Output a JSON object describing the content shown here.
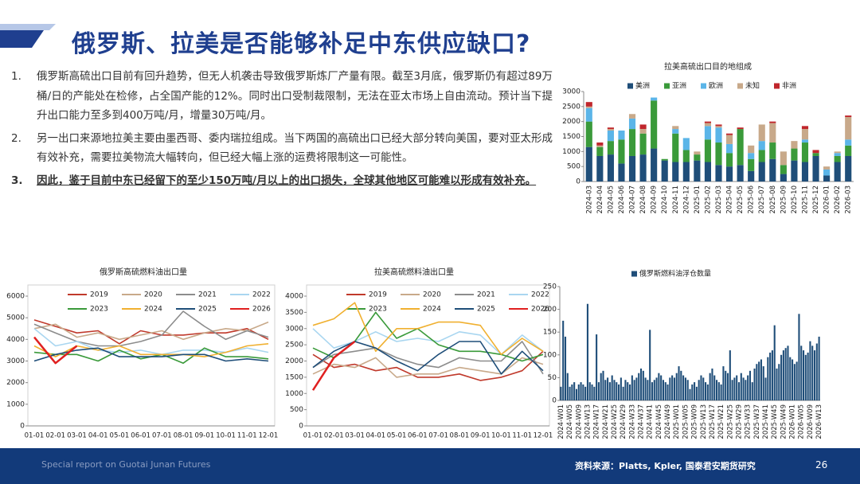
{
  "header": {
    "title": "俄罗斯、拉美是否能够补足中东供应缺口?"
  },
  "text": {
    "items": [
      {
        "number": "1.",
        "text": "俄罗斯高硫出口目前有回升趋势，但无人机袭击导致俄罗斯炼厂产量有限。截至3月底，俄罗斯仍有超过89万桶/日的产能处在检修，占全国产能的12%。同时出口受制裁限制，无法在亚太市场上自由流动。预计当下提升出口能力至多到400万吨/月，增量30万吨/月。"
      },
      {
        "number": "2.",
        "text": "另一出口来源地拉美主要由墨西哥、委内瑞拉组成。当下两国的高硫出口已经大部分转向美国，要对亚太形成有效补充，需要拉美物流大幅转向，但已经大幅上涨的运费将限制这一可能性。"
      },
      {
        "number": "3.",
        "text": "因此，鉴于目前中东已经留下的至少150万吨/月以上的出口损失，全球其他地区可能难以形成有效补充。"
      }
    ]
  },
  "footer": {
    "left": "Special report on Guotai Junan Futures",
    "source": "资料来源：Platts, Kpler, 国泰君安期货研究",
    "page": "26"
  },
  "chart_data": [
    {
      "type": "stacked_bar",
      "title": "拉美高硫出口目的地组成",
      "legend": "top",
      "grid": false,
      "categories": [
        "2024-03",
        "2024-04",
        "2024-05",
        "2024-06",
        "2024-07",
        "2024-08",
        "2024-09",
        "2024-10",
        "2024-11",
        "2024-12",
        "2025-01",
        "2025-02",
        "2025-03",
        "2025-04",
        "2025-05",
        "2025-06",
        "2025-07",
        "2025-08",
        "2025-09",
        "2025-10",
        "2025-11",
        "2025-12",
        "2026-01",
        "2026-02",
        "2026-03"
      ],
      "ylim": [
        0,
        3000
      ],
      "yticks": [
        0,
        500,
        1000,
        1500,
        2000,
        2500,
        3000
      ],
      "series": [
        {
          "name": "美洲",
          "color": "#1f4e79",
          "values": [
            1150,
            850,
            900,
            600,
            850,
            900,
            1100,
            700,
            650,
            650,
            700,
            650,
            550,
            500,
            550,
            350,
            650,
            750,
            250,
            700,
            650,
            850,
            200,
            650,
            850
          ]
        },
        {
          "name": "亚洲",
          "color": "#3a9a3a",
          "values": [
            850,
            300,
            450,
            800,
            900,
            700,
            1600,
            50,
            950,
            400,
            200,
            750,
            750,
            450,
            1200,
            400,
            400,
            550,
            300,
            400,
            650,
            100,
            0,
            200,
            350
          ]
        },
        {
          "name": "欧洲",
          "color": "#5bb5e8",
          "values": [
            450,
            0,
            350,
            300,
            350,
            0,
            100,
            0,
            150,
            400,
            0,
            450,
            500,
            300,
            0,
            200,
            300,
            0,
            0,
            0,
            100,
            0,
            200,
            100,
            200
          ]
        },
        {
          "name": "未知",
          "color": "#c8a98a",
          "values": [
            50,
            50,
            50,
            0,
            150,
            150,
            0,
            0,
            100,
            0,
            100,
            100,
            50,
            300,
            0,
            250,
            550,
            650,
            450,
            250,
            350,
            0,
            100,
            50,
            750
          ]
        },
        {
          "name": "非洲",
          "color": "#c0262c",
          "values": [
            150,
            100,
            50,
            0,
            0,
            150,
            0,
            0,
            0,
            0,
            0,
            50,
            50,
            50,
            50,
            0,
            0,
            50,
            0,
            0,
            100,
            100,
            0,
            0,
            50
          ]
        }
      ]
    },
    {
      "type": "line",
      "title": "俄罗斯高硫燃料油出口量",
      "legend": "top",
      "grid": false,
      "categories": [
        "01-01",
        "02-01",
        "03-01",
        "04-01",
        "05-01",
        "06-01",
        "07-01",
        "08-01",
        "09-01",
        "10-01",
        "11-01",
        "12-01"
      ],
      "ylim": [
        0,
        6000
      ],
      "yticks": [
        0,
        1000,
        2000,
        3000,
        4000,
        5000,
        6000
      ],
      "series": [
        {
          "name": "2019",
          "color": "#c0392b",
          "values": [
            4900,
            4600,
            4300,
            4400,
            3800,
            4400,
            4200,
            4200,
            4300,
            4300,
            4500,
            4000
          ]
        },
        {
          "name": "2020",
          "color": "#c8a98a",
          "values": [
            4500,
            4700,
            4100,
            4300,
            4000,
            4200,
            4400,
            4000,
            4300,
            4500,
            4400,
            4800
          ]
        },
        {
          "name": "2021",
          "color": "#8c8c8c",
          "values": [
            4700,
            4300,
            3900,
            3700,
            3700,
            3900,
            4200,
            5300,
            4600,
            4000,
            4400,
            4100
          ]
        },
        {
          "name": "2022",
          "color": "#a9d6f0",
          "values": [
            4500,
            3700,
            3900,
            3500,
            3400,
            3500,
            3300,
            3500,
            3500,
            3400,
            3600,
            3400
          ]
        },
        {
          "name": "2023",
          "color": "#3a9a3a",
          "values": [
            3400,
            3300,
            3300,
            3000,
            3500,
            3100,
            3300,
            2900,
            3600,
            3200,
            3200,
            3100
          ]
        },
        {
          "name": "2024",
          "color": "#f0b030",
          "values": [
            3700,
            3200,
            3700,
            3500,
            3700,
            3300,
            3300,
            3300,
            3200,
            3400,
            3700,
            3800
          ]
        },
        {
          "name": "2025",
          "color": "#1f4e79",
          "values": [
            3000,
            3300,
            3500,
            3600,
            3200,
            3200,
            3200,
            3300,
            3300,
            3000,
            3100,
            3000
          ]
        },
        {
          "name": "2026",
          "color": "#e02020",
          "values": [
            4100,
            2900,
            3700,
            null,
            null,
            null,
            null,
            null,
            null,
            null,
            null,
            null
          ]
        }
      ]
    },
    {
      "type": "line",
      "title": "拉美高硫燃料油出口量",
      "legend": "top",
      "grid": false,
      "categories": [
        "01-01",
        "02-01",
        "03-01",
        "04-01",
        "05-01",
        "06-01",
        "07-01",
        "08-01",
        "09-01",
        "10-01",
        "11-01",
        "12-01"
      ],
      "ylim": [
        0,
        4000
      ],
      "yticks": [
        0,
        500,
        1000,
        1500,
        2000,
        2500,
        3000,
        3500,
        4000
      ],
      "series": [
        {
          "name": "2019",
          "color": "#c0392b",
          "values": [
            2200,
            1800,
            1900,
            1700,
            1800,
            1500,
            1500,
            1600,
            1400,
            1500,
            1700,
            2300
          ]
        },
        {
          "name": "2020",
          "color": "#c8a98a",
          "values": [
            1600,
            1900,
            1800,
            2100,
            1500,
            1600,
            1600,
            1800,
            1700,
            1600,
            2100,
            1900
          ]
        },
        {
          "name": "2021",
          "color": "#8c8c8c",
          "values": [
            1800,
            2200,
            2300,
            2400,
            2100,
            1900,
            1800,
            2100,
            2000,
            2000,
            2600,
            1600
          ]
        },
        {
          "name": "2022",
          "color": "#a9d6f0",
          "values": [
            3000,
            2400,
            2600,
            2900,
            2600,
            2700,
            2600,
            2900,
            2800,
            2200,
            2800,
            2300
          ]
        },
        {
          "name": "2023",
          "color": "#3a9a3a",
          "values": [
            2400,
            2100,
            2600,
            3500,
            2700,
            3000,
            2500,
            2300,
            2300,
            2200,
            2000,
            2200
          ]
        },
        {
          "name": "2024",
          "color": "#f0b030",
          "values": [
            3100,
            3300,
            3800,
            2300,
            3000,
            3000,
            3200,
            3200,
            3100,
            2200,
            2700,
            2300
          ]
        },
        {
          "name": "2025",
          "color": "#1f4e79",
          "values": [
            1800,
            2300,
            2600,
            2400,
            2000,
            1700,
            2200,
            2600,
            2600,
            1600,
            2300,
            1700
          ]
        },
        {
          "name": "2026",
          "color": "#e02020",
          "values": [
            1100,
            2100,
            2600,
            null,
            null,
            null,
            null,
            null,
            null,
            null,
            null,
            null
          ]
        }
      ]
    },
    {
      "type": "bar",
      "legend": "top",
      "grid": false,
      "categories": [
        "2024-W01",
        null,
        null,
        null,
        "2024-W05",
        null,
        null,
        null,
        "2024-W09",
        null,
        null,
        null,
        "2024-W13",
        null,
        null,
        null,
        "2024-W17",
        null,
        null,
        null,
        "2024-W21",
        null,
        null,
        null,
        "2024-W25",
        null,
        null,
        null,
        "2024-W29",
        null,
        null,
        null,
        "2024-W33",
        null,
        null,
        null,
        "2024-W37",
        null,
        null,
        null,
        "2024-W41",
        null,
        null,
        null,
        "2024-W45",
        null,
        null,
        null,
        "2024-W49",
        null,
        null,
        null,
        "2025-W01",
        null,
        null,
        null,
        "2025-W05",
        null,
        null,
        null,
        "2025-W09",
        null,
        null,
        null,
        "2025-W13",
        null,
        null,
        null,
        "2025-W17",
        null,
        null,
        null,
        "2025-W21",
        null,
        null,
        null,
        "2025-W25",
        null,
        null,
        null,
        "2025-W29",
        null,
        null,
        null,
        "2025-W33",
        null,
        null,
        null,
        "2025-W37",
        null,
        null,
        null,
        "2025-W41",
        null,
        null,
        null,
        "2025-W45",
        null,
        null,
        null,
        "2025-W49",
        null,
        null,
        null,
        "2026-W01",
        null,
        null,
        null,
        "2026-W05",
        null,
        null,
        null,
        "2026-W09",
        null,
        null,
        null,
        "2026-W13"
      ],
      "ylim": [
        0,
        250
      ],
      "yticks": [
        0,
        50,
        100,
        150,
        200,
        250
      ],
      "series": [
        {
          "name": "俄罗斯燃料油浮仓数量",
          "color": "#1f4e79",
          "values": [
            30,
            175,
            140,
            60,
            30,
            35,
            40,
            25,
            35,
            40,
            35,
            30,
            212,
            40,
            35,
            30,
            145,
            40,
            60,
            65,
            45,
            50,
            40,
            55,
            45,
            40,
            35,
            50,
            30,
            45,
            40,
            35,
            55,
            45,
            50,
            60,
            70,
            65,
            50,
            45,
            155,
            40,
            45,
            50,
            60,
            55,
            45,
            40,
            35,
            50,
            55,
            50,
            60,
            75,
            65,
            55,
            50,
            45,
            25,
            35,
            40,
            30,
            45,
            55,
            50,
            40,
            35,
            60,
            70,
            55,
            45,
            40,
            35,
            75,
            65,
            60,
            110,
            45,
            50,
            55,
            40,
            60,
            50,
            45,
            55,
            65,
            40,
            70,
            80,
            85,
            90,
            75,
            50,
            95,
            105,
            110,
            165,
            70,
            80,
            100,
            110,
            115,
            120,
            95,
            90,
            80,
            85,
            190,
            120,
            110,
            100,
            105,
            130,
            120,
            110,
            125,
            140
          ]
        }
      ]
    }
  ]
}
